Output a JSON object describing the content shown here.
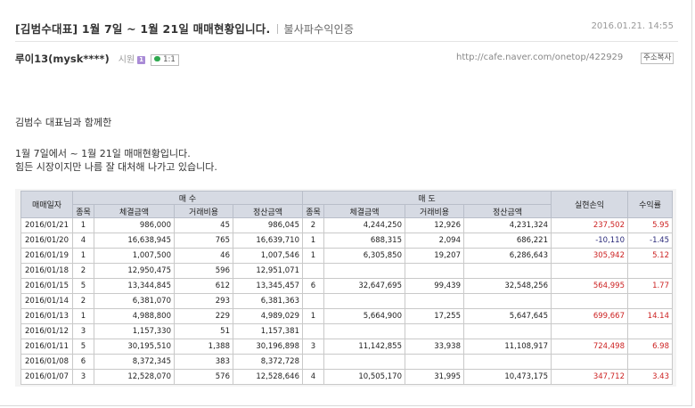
{
  "post": {
    "title": "[김범수대표] 1월 7일 ~ 1월 21일 매매현황입니다.",
    "category": "불사파수익인증",
    "date": "2016.01.21. 14:55"
  },
  "author": {
    "name": "루이13(mysk****)",
    "level": "시원",
    "level_badge": "1",
    "comment_count": "1:1",
    "url": "http://cafe.naver.com/onetop/422929",
    "copy_label": "주소복사"
  },
  "content": {
    "line1": "김범수 대표님과 함께한",
    "line2": "1월 7일에서 ~ 1월 21일 매매현황입니다.",
    "line3": "힘든 시장이지만 나름 잘 대처해 나가고 있습니다."
  },
  "table": {
    "headers": {
      "date": "매매일자",
      "buy": "매 수",
      "sell": "매 도",
      "pnl": "실현손익",
      "rate": "수익률",
      "count": "종목",
      "amount": "체결금액",
      "fee": "거래비용",
      "settle": "정산금액"
    },
    "rows": [
      {
        "date": "2016/01/21",
        "b_cnt": "1",
        "b_amt": "986,000",
        "b_fee": "45",
        "b_set": "986,045",
        "s_cnt": "2",
        "s_amt": "4,244,250",
        "s_fee": "12,926",
        "s_set": "4,231,324",
        "pnl": "237,502",
        "rate": "5.95",
        "sign": "pos"
      },
      {
        "date": "2016/01/20",
        "b_cnt": "4",
        "b_amt": "16,638,945",
        "b_fee": "765",
        "b_set": "16,639,710",
        "s_cnt": "1",
        "s_amt": "688,315",
        "s_fee": "2,094",
        "s_set": "686,221",
        "pnl": "-10,110",
        "rate": "-1.45",
        "sign": "neg"
      },
      {
        "date": "2016/01/19",
        "b_cnt": "1",
        "b_amt": "1,007,500",
        "b_fee": "46",
        "b_set": "1,007,546",
        "s_cnt": "1",
        "s_amt": "6,305,850",
        "s_fee": "19,207",
        "s_set": "6,286,643",
        "pnl": "305,942",
        "rate": "5.12",
        "sign": "pos"
      },
      {
        "date": "2016/01/18",
        "b_cnt": "2",
        "b_amt": "12,950,475",
        "b_fee": "596",
        "b_set": "12,951,071",
        "s_cnt": "",
        "s_amt": "",
        "s_fee": "",
        "s_set": "",
        "pnl": "",
        "rate": "",
        "sign": "pos"
      },
      {
        "date": "2016/01/15",
        "b_cnt": "5",
        "b_amt": "13,344,845",
        "b_fee": "612",
        "b_set": "13,345,457",
        "s_cnt": "6",
        "s_amt": "32,647,695",
        "s_fee": "99,439",
        "s_set": "32,548,256",
        "pnl": "564,995",
        "rate": "1.77",
        "sign": "pos"
      },
      {
        "date": "2016/01/14",
        "b_cnt": "2",
        "b_amt": "6,381,070",
        "b_fee": "293",
        "b_set": "6,381,363",
        "s_cnt": "",
        "s_amt": "",
        "s_fee": "",
        "s_set": "",
        "pnl": "",
        "rate": "",
        "sign": "pos"
      },
      {
        "date": "2016/01/13",
        "b_cnt": "1",
        "b_amt": "4,988,800",
        "b_fee": "229",
        "b_set": "4,989,029",
        "s_cnt": "1",
        "s_amt": "5,664,900",
        "s_fee": "17,255",
        "s_set": "5,647,645",
        "pnl": "699,667",
        "rate": "14.14",
        "sign": "pos"
      },
      {
        "date": "2016/01/12",
        "b_cnt": "3",
        "b_amt": "1,157,330",
        "b_fee": "51",
        "b_set": "1,157,381",
        "s_cnt": "",
        "s_amt": "",
        "s_fee": "",
        "s_set": "",
        "pnl": "",
        "rate": "",
        "sign": "pos"
      },
      {
        "date": "2016/01/11",
        "b_cnt": "5",
        "b_amt": "30,195,510",
        "b_fee": "1,388",
        "b_set": "30,196,898",
        "s_cnt": "3",
        "s_amt": "11,142,855",
        "s_fee": "33,938",
        "s_set": "11,108,917",
        "pnl": "724,498",
        "rate": "6.98",
        "sign": "pos"
      },
      {
        "date": "2016/01/08",
        "b_cnt": "6",
        "b_amt": "8,372,345",
        "b_fee": "383",
        "b_set": "8,372,728",
        "s_cnt": "",
        "s_amt": "",
        "s_fee": "",
        "s_set": "",
        "pnl": "",
        "rate": "",
        "sign": "pos"
      },
      {
        "date": "2016/01/07",
        "b_cnt": "3",
        "b_amt": "12,528,070",
        "b_fee": "576",
        "b_set": "12,528,646",
        "s_cnt": "4",
        "s_amt": "10,505,170",
        "s_fee": "31,995",
        "s_set": "10,473,175",
        "pnl": "347,712",
        "rate": "3.43",
        "sign": "pos"
      }
    ]
  }
}
